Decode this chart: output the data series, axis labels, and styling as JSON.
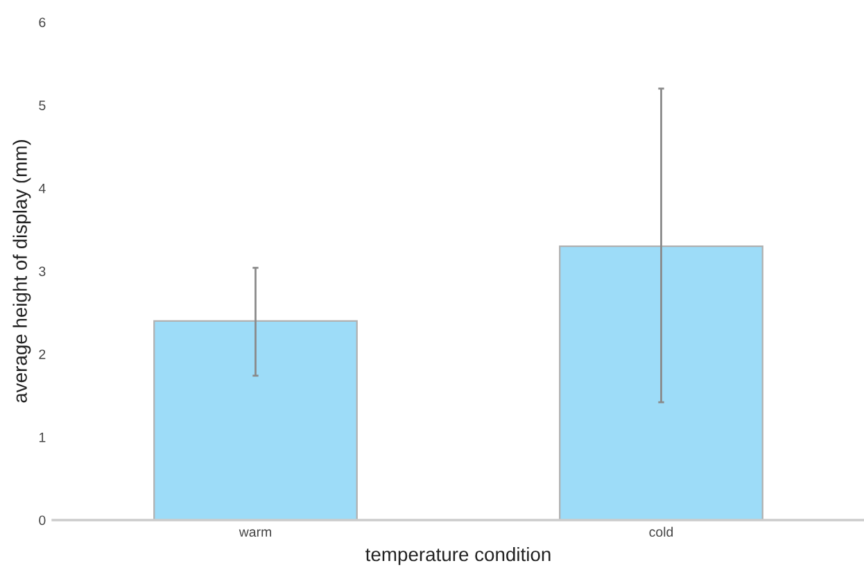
{
  "chart_data": {
    "type": "bar",
    "xlabel": "temperature condition",
    "ylabel": "average height of display (mm)",
    "categories": [
      "warm",
      "cold"
    ],
    "values": [
      2.4,
      3.3
    ],
    "errors": [
      [
        1.74,
        3.04
      ],
      [
        1.42,
        5.2
      ]
    ],
    "color": "#9ddcf8",
    "ylim": [
      0,
      6
    ],
    "yticks": [
      0,
      1,
      2,
      3,
      4,
      5,
      6
    ],
    "grid": false,
    "legend": false
  }
}
